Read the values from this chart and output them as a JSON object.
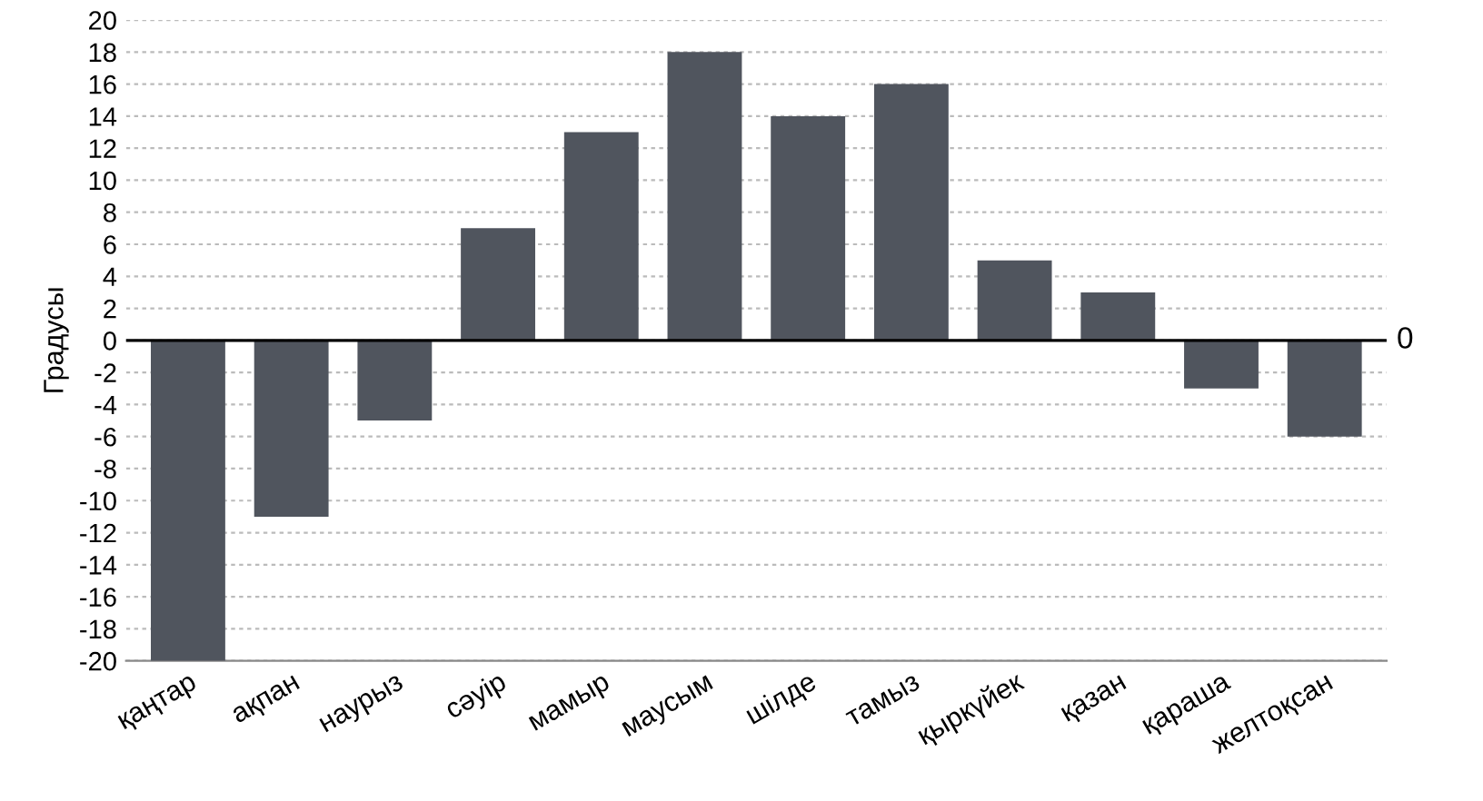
{
  "chart_data": {
    "type": "bar",
    "ylabel": "Градусы",
    "categories": [
      "қаңтар",
      "ақпан",
      "наурыз",
      "сәуір",
      "мамыр",
      "маусым",
      "шілде",
      "тамыз",
      "қыркүйек",
      "қазан",
      "қараша",
      "желтоқсан"
    ],
    "values": [
      -20,
      -11,
      -5,
      7,
      13,
      18,
      14,
      16,
      5,
      3,
      -3,
      -6
    ],
    "color": "#50555e",
    "ylim": [
      -20,
      20
    ],
    "yticks": [
      -20,
      -18,
      -16,
      -14,
      -12,
      -10,
      -8,
      -6,
      -4,
      -2,
      0,
      2,
      4,
      6,
      8,
      10,
      12,
      14,
      16,
      18,
      20
    ],
    "grid": "y",
    "ref_lines": [
      {
        "axis": "y",
        "value": 0,
        "label": "0",
        "color": "#000000"
      }
    ]
  }
}
